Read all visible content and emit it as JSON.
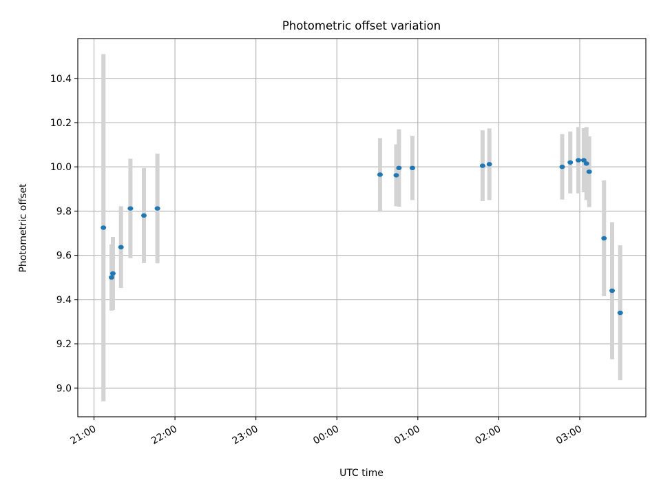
{
  "chart_data": {
    "type": "scatter",
    "title": "Photometric offset variation",
    "xlabel": "UTC time",
    "ylabel": "Photometric offset",
    "x_axis_type": "time",
    "xlim": [
      "20:48",
      "03:49"
    ],
    "ylim": [
      8.87,
      10.58
    ],
    "x_ticks": [
      "21:00",
      "22:00",
      "23:00",
      "00:00",
      "01:00",
      "02:00",
      "03:00"
    ],
    "y_ticks": [
      9.0,
      9.2,
      9.4,
      9.6,
      9.8,
      10.0,
      10.2,
      10.4
    ],
    "y_tick_labels": [
      "9.0",
      "9.2",
      "9.4",
      "9.6",
      "9.8",
      "10.0",
      "10.2",
      "10.4"
    ],
    "grid": true,
    "legend": "none",
    "x_tick_label_rotation": "30deg",
    "colors": {
      "point": "#1f77b4",
      "errorbar": "#d3d3d3",
      "grid": "#b0b0b0"
    },
    "points": [
      {
        "time": "21:07",
        "value": 9.725,
        "error": 0.785
      },
      {
        "time": "21:13",
        "value": 9.5,
        "error": 0.15
      },
      {
        "time": "21:14",
        "value": 9.518,
        "error": 0.165
      },
      {
        "time": "21:20",
        "value": 9.637,
        "error": 0.185
      },
      {
        "time": "21:27",
        "value": 9.812,
        "error": 0.225
      },
      {
        "time": "21:37",
        "value": 9.78,
        "error": 0.215
      },
      {
        "time": "21:47",
        "value": 9.812,
        "error": 0.248
      },
      {
        "time": "00:32",
        "value": 9.965,
        "error": 0.165
      },
      {
        "time": "00:44",
        "value": 9.962,
        "error": 0.14
      },
      {
        "time": "00:46",
        "value": 9.995,
        "error": 0.175
      },
      {
        "time": "00:56",
        "value": 9.995,
        "error": 0.145
      },
      {
        "time": "01:48",
        "value": 10.005,
        "error": 0.16
      },
      {
        "time": "01:53",
        "value": 10.012,
        "error": 0.162
      },
      {
        "time": "02:47",
        "value": 10.0,
        "error": 0.148
      },
      {
        "time": "02:53",
        "value": 10.02,
        "error": 0.14
      },
      {
        "time": "02:59",
        "value": 10.03,
        "error": 0.15
      },
      {
        "time": "03:03",
        "value": 10.03,
        "error": 0.145
      },
      {
        "time": "03:05",
        "value": 10.015,
        "error": 0.165
      },
      {
        "time": "03:07",
        "value": 9.978,
        "error": 0.16
      },
      {
        "time": "03:18",
        "value": 9.677,
        "error": 0.262
      },
      {
        "time": "03:24",
        "value": 9.44,
        "error": 0.31
      },
      {
        "time": "03:30",
        "value": 9.34,
        "error": 0.305
      }
    ]
  }
}
